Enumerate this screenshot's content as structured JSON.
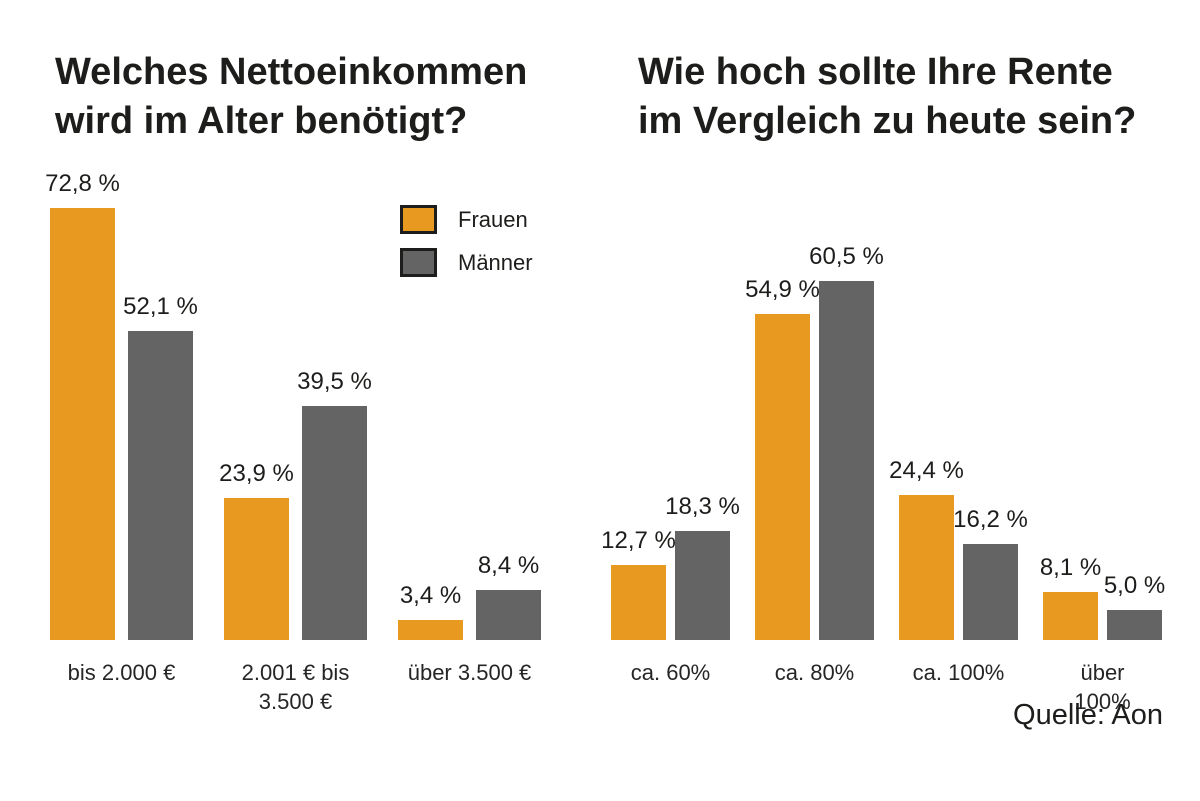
{
  "source": "Quelle: Aon",
  "legend": {
    "position": "top-right of left chart",
    "items": [
      {
        "label": "Frauen",
        "color": "#E8991F"
      },
      {
        "label": "Männer",
        "color": "#646464"
      }
    ]
  },
  "chart_data": [
    {
      "type": "bar",
      "title": "Welches Nettoeinkommen wird im Alter benötigt?",
      "title_lines": [
        "Welches Nettoeinkommen",
        "wird im Alter benötigt?"
      ],
      "categories": [
        "bis 2.000 €",
        "2.001 € bis\n3.500 €",
        "über 3.500 €"
      ],
      "series": [
        {
          "name": "Frauen",
          "color": "#E8991F",
          "values": [
            72.8,
            23.9,
            3.4
          ],
          "value_labels": [
            "72,8 %",
            "23,9 %",
            "3,4 %"
          ]
        },
        {
          "name": "Männer",
          "color": "#646464",
          "values": [
            52.1,
            39.5,
            8.4
          ],
          "value_labels": [
            "52,1 %",
            "39,5 %",
            "8,4 %"
          ]
        }
      ],
      "unit": "%",
      "axes_visible": false,
      "gridlines": false,
      "value_labels_visible": true
    },
    {
      "type": "bar",
      "title": "Wie hoch sollte Ihre Rente im Vergleich zu heute sein?",
      "title_lines": [
        "Wie hoch sollte Ihre Rente",
        "im Vergleich zu heute sein?"
      ],
      "categories": [
        "ca. 60%",
        "ca. 80%",
        "ca. 100%",
        "über 100%"
      ],
      "series": [
        {
          "name": "Frauen",
          "color": "#E8991F",
          "values": [
            12.7,
            54.9,
            24.4,
            8.1
          ],
          "value_labels": [
            "12,7 %",
            "54,9 %",
            "24,4 %",
            "8,1 %"
          ]
        },
        {
          "name": "Männer",
          "color": "#646464",
          "values": [
            18.3,
            60.5,
            16.2,
            5.0
          ],
          "value_labels": [
            "18,3 %",
            "60,5 %",
            "16,2 %",
            "5,0 %"
          ]
        }
      ],
      "unit": "%",
      "axes_visible": false,
      "gridlines": false,
      "value_labels_visible": true
    }
  ]
}
